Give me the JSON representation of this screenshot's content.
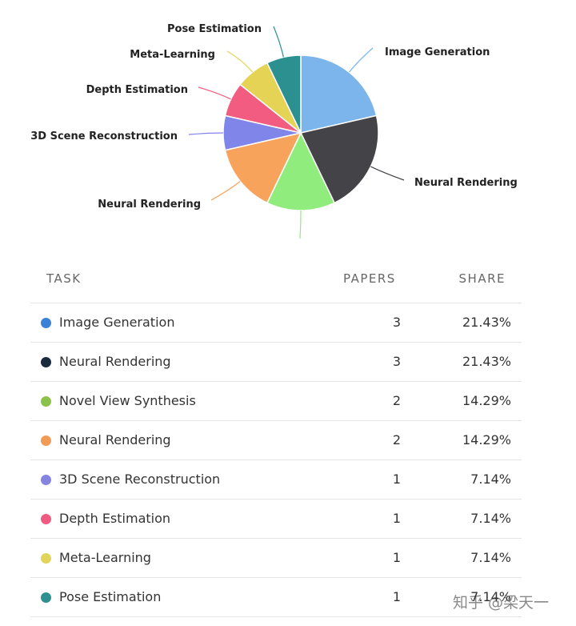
{
  "chart_data": {
    "type": "pie",
    "slices": [
      {
        "label": "Image Generation",
        "value": 3,
        "share": "21.43%",
        "color": "#7cb5ec",
        "dot": "#3b82d6"
      },
      {
        "label": "Neural Rendering",
        "value": 3,
        "share": "21.43%",
        "color": "#434348",
        "dot": "#1b2a3d"
      },
      {
        "label": "",
        "value": 2,
        "share": "14.29%",
        "color": "#90ed7d",
        "dot": "#8bc34a"
      },
      {
        "label": "Neural Rendering",
        "value": 2,
        "share": "14.29%",
        "color": "#f7a35c",
        "dot": "#f29b57"
      },
      {
        "label": "3D Scene Reconstruction",
        "value": 1,
        "share": "7.14%",
        "color": "#8085e9",
        "dot": "#8584e0"
      },
      {
        "label": "Depth Estimation",
        "value": 1,
        "share": "7.14%",
        "color": "#f15c80",
        "dot": "#ef5b80"
      },
      {
        "label": "Meta-Learning",
        "value": 1,
        "share": "7.14%",
        "color": "#e4d354",
        "dot": "#e0d45a"
      },
      {
        "label": "Pose Estimation",
        "value": 1,
        "share": "7.14%",
        "color": "#2b908f",
        "dot": "#2e9190"
      }
    ]
  },
  "table": {
    "headers": {
      "task": "TASK",
      "papers": "PAPERS",
      "share": "SHARE"
    },
    "rows": [
      {
        "task": "Image Generation",
        "papers": "3",
        "share": "21.43%"
      },
      {
        "task": "Neural Rendering",
        "papers": "3",
        "share": "21.43%"
      },
      {
        "task": "Novel View Synthesis",
        "papers": "2",
        "share": "14.29%"
      },
      {
        "task": "Neural Rendering",
        "papers": "2",
        "share": "14.29%"
      },
      {
        "task": "3D Scene Reconstruction",
        "papers": "1",
        "share": "7.14%"
      },
      {
        "task": "Depth Estimation",
        "papers": "1",
        "share": "7.14%"
      },
      {
        "task": "Meta-Learning",
        "papers": "1",
        "share": "7.14%"
      },
      {
        "task": "Pose Estimation",
        "papers": "1",
        "share": "7.14%"
      }
    ]
  },
  "watermark": "知乎 @梁天一"
}
